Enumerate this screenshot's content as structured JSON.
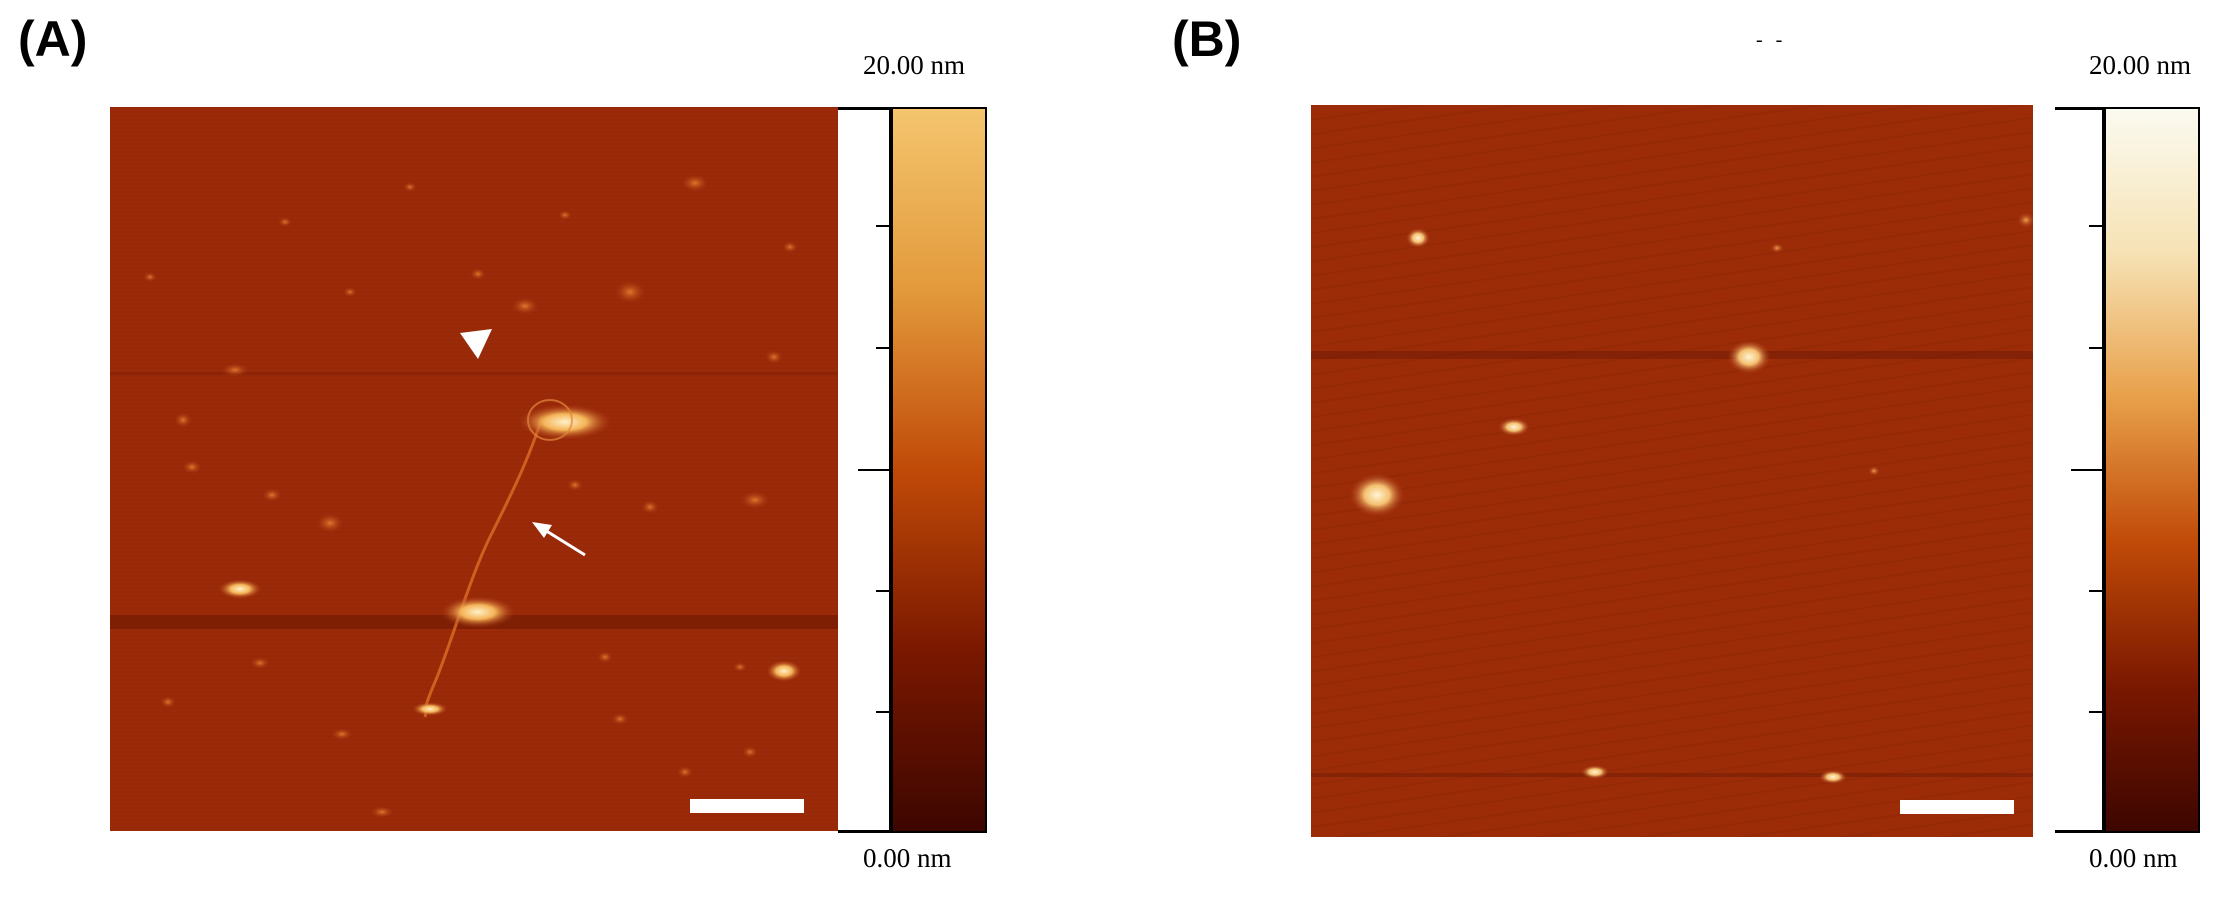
{
  "panels": {
    "a": {
      "label": "(A)",
      "colorbar_max": "20.00 nm",
      "colorbar_min": "0.00 nm",
      "colormap": [
        "#3d0600",
        "#7a1800",
        "#c04a08",
        "#e39a3c",
        "#f4c56e"
      ],
      "annotations": [
        "white-arrowhead",
        "white-arrow"
      ]
    },
    "b": {
      "label": "(B)",
      "colorbar_max": "20.00 nm",
      "colorbar_min": "0.00 nm",
      "colormap": [
        "#3d0600",
        "#7a1800",
        "#c04a08",
        "#e8a04a",
        "#f6e2b4",
        "#fbfaf0"
      ],
      "top_marks": "-  -"
    }
  },
  "colors": {
    "afm_background": "#9e2a08",
    "afm_particle": "#f6c878",
    "scale_bar": "#ffffff"
  }
}
